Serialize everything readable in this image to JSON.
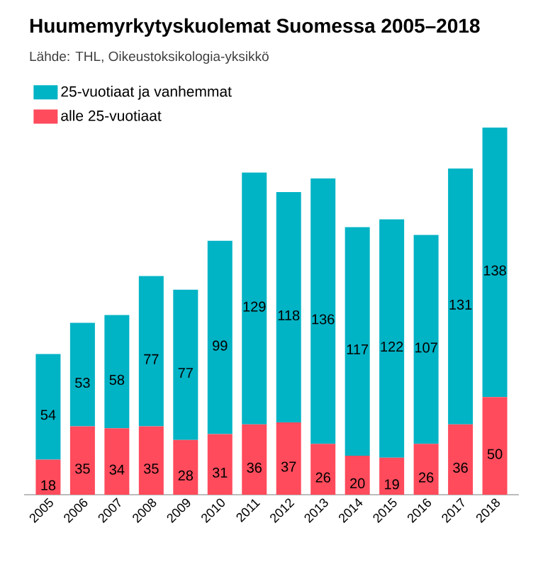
{
  "chart_data": {
    "type": "bar",
    "title": "Huumemyrkytyskuolemat Suomessa 2005–2018",
    "subtitle": "Lähde: THL, Oikeustoksikologia-yksikkö",
    "categories": [
      "2005",
      "2006",
      "2007",
      "2008",
      "2009",
      "2010",
      "2011",
      "2012",
      "2013",
      "2014",
      "2015",
      "2016",
      "2017",
      "2018"
    ],
    "stacked": true,
    "data_labels": true,
    "legend": "top left",
    "series": [
      {
        "name": "alle 25-vuotiaat",
        "color": "#ff4b5c",
        "values": [
          18,
          35,
          34,
          35,
          28,
          31,
          36,
          37,
          26,
          20,
          19,
          26,
          36,
          50
        ]
      },
      {
        "name": "25-vuotiaat ja vanhemmat",
        "color": "#00b3c5",
        "values": [
          54,
          53,
          58,
          77,
          77,
          99,
          129,
          118,
          136,
          117,
          122,
          107,
          131,
          138
        ]
      }
    ]
  }
}
